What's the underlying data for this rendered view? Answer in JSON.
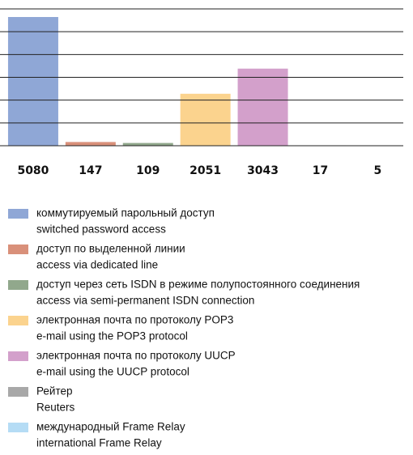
{
  "chart_data": {
    "type": "bar",
    "categories": [
      "коммутируемый парольный доступ",
      "доступ по выделенной линии",
      "доступ через сеть ISDN в режиме полупостоянного соединения",
      "электронная почта по протоколу POP3",
      "электронная почта по протоколу UUCP",
      "Рейтер",
      "международный Frame Relay"
    ],
    "categories_en": [
      "switched password access",
      "access via dedicated line",
      "access via semi-permanent ISDN connection",
      "e-mail using the POP3 protocol",
      "e-mail using the UUCP protocol",
      "Reuters",
      "international Frame Relay"
    ],
    "values": [
      5080,
      147,
      109,
      2051,
      3043,
      17,
      5
    ],
    "colors": [
      "#8fa7d6",
      "#d9907a",
      "#91a88c",
      "#fbd38e",
      "#d3a0cb",
      "#a8a8a8",
      "#b5dcf5"
    ],
    "ylim": [
      0,
      5400
    ],
    "yticks": [
      0,
      900,
      1800,
      2700,
      3600,
      4500,
      5400
    ],
    "grid": true
  }
}
